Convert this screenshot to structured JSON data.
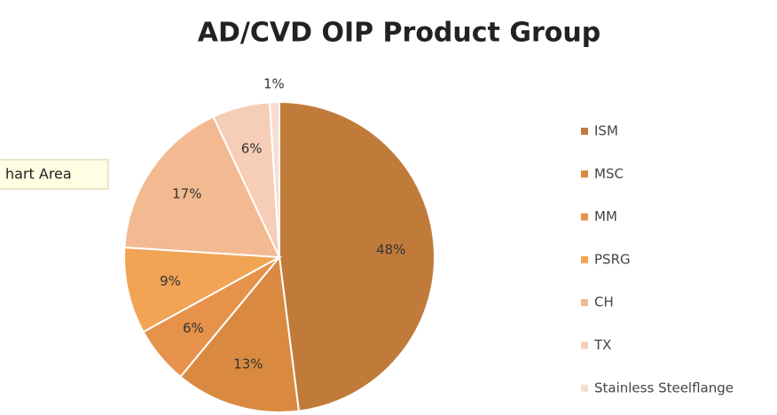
{
  "chart_data": {
    "type": "pie",
    "title": "AD/CVD OIP Product Group",
    "categories": [
      "ISM",
      "MSC",
      "MM",
      "PSRG",
      "CH",
      "TX",
      "Stainless Steelflange"
    ],
    "values": [
      48,
      13,
      6,
      9,
      17,
      6,
      1
    ],
    "value_labels": [
      "48%",
      "13%",
      "6%",
      "9%",
      "17%",
      "6%",
      "1%"
    ],
    "colors": [
      "#c07b3b",
      "#d98a40",
      "#e6924a",
      "#f0a454",
      "#f3b990",
      "#f6cdb6",
      "#f8ddd2"
    ],
    "legend": "right",
    "tooltip": "hart Area"
  }
}
